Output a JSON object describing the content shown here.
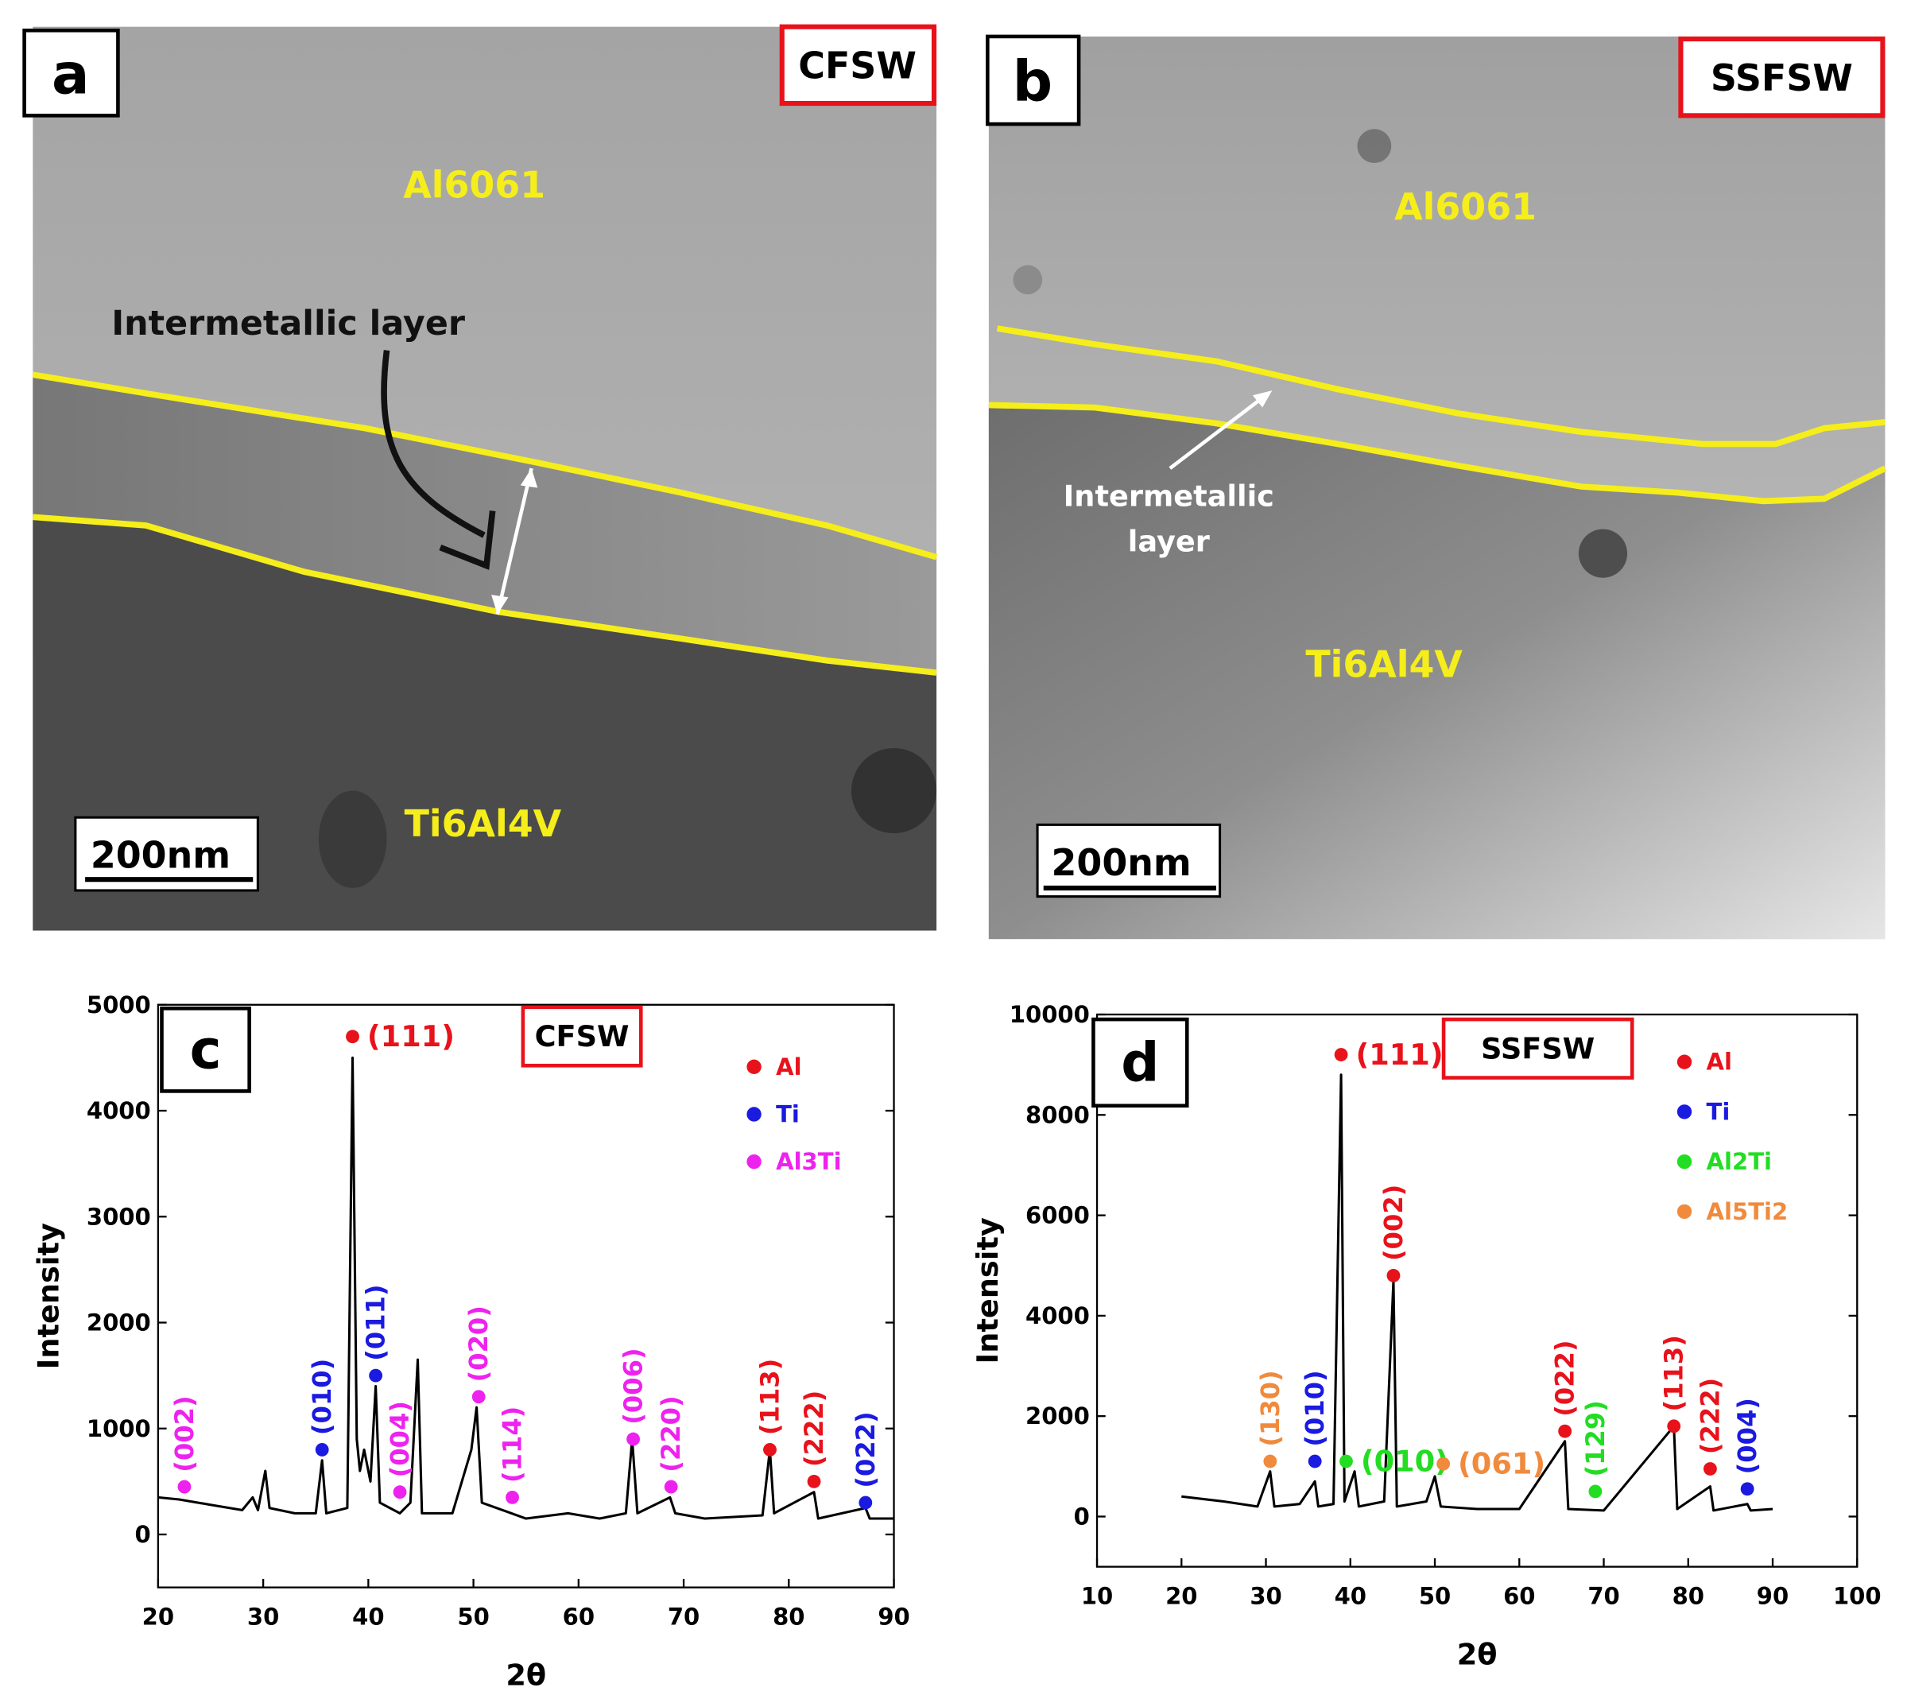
{
  "panels": [
    {
      "letter": "a",
      "tag": "CFSW",
      "top_label": "Al6061",
      "layer_label": [
        "Intermetallic layer"
      ],
      "bottom_label": "Ti6Al4V",
      "scale_bar": "200nm"
    },
    {
      "letter": "b",
      "tag": "SSFSW",
      "top_label": "Al6061",
      "layer_label": [
        "Intermetallic",
        "layer"
      ],
      "bottom_label": "Ti6Al4V",
      "scale_bar": "200nm"
    }
  ],
  "chart_data": [
    {
      "type": "line",
      "letter": "c",
      "tag": "CFSW",
      "xlabel": "2θ",
      "ylabel": "Intensity",
      "xlim": [
        20,
        90
      ],
      "xticks": [
        20,
        30,
        40,
        50,
        60,
        70,
        80,
        90
      ],
      "ylim": [
        -500,
        5000
      ],
      "yticks": [
        0,
        1000,
        2000,
        3000,
        4000,
        5000
      ],
      "color": "#000000",
      "x": [
        20,
        22,
        25,
        28,
        29,
        29.5,
        30.2,
        30.6,
        33,
        35,
        35.6,
        36,
        38,
        38.5,
        38.9,
        39.2,
        39.6,
        40.2,
        40.7,
        41.1,
        43,
        44,
        44.7,
        45.1,
        48,
        49.8,
        50.3,
        50.8,
        55,
        59,
        62,
        64.5,
        65.1,
        65.6,
        68.7,
        69.2,
        72,
        77.5,
        78.2,
        78.6,
        82.4,
        82.8,
        87.3,
        87.7,
        90
      ],
      "values": [
        350,
        330,
        280,
        230,
        350,
        230,
        600,
        250,
        200,
        200,
        700,
        200,
        250,
        4500,
        900,
        600,
        800,
        500,
        1400,
        300,
        200,
        300,
        1650,
        200,
        200,
        800,
        1200,
        300,
        150,
        200,
        150,
        200,
        900,
        200,
        350,
        200,
        150,
        180,
        800,
        200,
        400,
        150,
        250,
        150,
        150
      ],
      "legend": [
        {
          "name": "Al",
          "color": "#e8121b"
        },
        {
          "name": "Ti",
          "color": "#1a1ae0"
        },
        {
          "name": "Al3Ti",
          "color": "#ee22ee"
        }
      ],
      "annotations": [
        {
          "text": "(111)",
          "x": 38.5,
          "y": 4700,
          "color": "#e8121b",
          "rotated": false
        },
        {
          "text": "(002)",
          "x": 22.5,
          "y": 450,
          "color": "#ee22ee",
          "rotated": true
        },
        {
          "text": "(010)",
          "x": 35.6,
          "y": 800,
          "color": "#1a1ae0",
          "rotated": true
        },
        {
          "text": "(011)",
          "x": 40.7,
          "y": 1500,
          "color": "#1a1ae0",
          "rotated": true
        },
        {
          "text": "(004)",
          "x": 43,
          "y": 400,
          "color": "#ee22ee",
          "rotated": true
        },
        {
          "text": "(020)",
          "x": 50.5,
          "y": 1300,
          "color": "#ee22ee",
          "rotated": true
        },
        {
          "text": "(114)",
          "x": 53.7,
          "y": 350,
          "color": "#ee22ee",
          "rotated": true
        },
        {
          "text": "(006)",
          "x": 65.2,
          "y": 900,
          "color": "#ee22ee",
          "rotated": true
        },
        {
          "text": "(220)",
          "x": 68.8,
          "y": 450,
          "color": "#ee22ee",
          "rotated": true
        },
        {
          "text": "(113)",
          "x": 78.2,
          "y": 800,
          "color": "#e8121b",
          "rotated": true
        },
        {
          "text": "(222)",
          "x": 82.4,
          "y": 500,
          "color": "#e8121b",
          "rotated": true
        },
        {
          "text": "(022)",
          "x": 87.3,
          "y": 300,
          "color": "#1a1ae0",
          "rotated": true
        }
      ]
    },
    {
      "type": "line",
      "letter": "d",
      "tag": "SSFSW",
      "xlabel": "2θ",
      "ylabel": "Intensity",
      "xlim": [
        10,
        100
      ],
      "xticks": [
        10,
        20,
        30,
        40,
        50,
        60,
        70,
        80,
        90,
        100
      ],
      "ylim": [
        -1000,
        10000
      ],
      "yticks": [
        0,
        2000,
        4000,
        6000,
        8000,
        10000
      ],
      "color": "#000000",
      "x": [
        20,
        25,
        29,
        30.5,
        31,
        34,
        35,
        35.8,
        36.2,
        38,
        38.9,
        39.3,
        40.5,
        41,
        44,
        45.1,
        45.5,
        49,
        50,
        50.7,
        55,
        60,
        65.4,
        65.8,
        70,
        78.3,
        78.7,
        82.6,
        83,
        87,
        87.4,
        90
      ],
      "values": [
        400,
        300,
        200,
        900,
        200,
        250,
        500,
        700,
        200,
        250,
        8800,
        300,
        900,
        200,
        300,
        4700,
        200,
        300,
        800,
        200,
        150,
        150,
        1500,
        150,
        120,
        1800,
        150,
        600,
        120,
        250,
        120,
        150
      ],
      "legend": [
        {
          "name": "Al",
          "color": "#e8121b"
        },
        {
          "name": "Ti",
          "color": "#1a1ae0"
        },
        {
          "name": "Al2Ti",
          "color": "#22dd22"
        },
        {
          "name": "Al5Ti2",
          "color": "#f08a3c"
        }
      ],
      "annotations": [
        {
          "text": "(111)",
          "x": 38.9,
          "y": 9200,
          "color": "#e8121b",
          "rotated": false
        },
        {
          "text": "(010)",
          "x": 39.5,
          "y": 1100,
          "color": "#22dd22",
          "rotated": false
        },
        {
          "text": "(061)",
          "x": 51,
          "y": 1050,
          "color": "#f08a3c",
          "rotated": false
        },
        {
          "text": "(130)",
          "x": 30.5,
          "y": 1100,
          "color": "#f08a3c",
          "rotated": true
        },
        {
          "text": "(010)",
          "x": 35.8,
          "y": 1100,
          "color": "#1a1ae0",
          "rotated": true
        },
        {
          "text": "(002)",
          "x": 45.1,
          "y": 4800,
          "color": "#e8121b",
          "rotated": true
        },
        {
          "text": "(022)",
          "x": 65.4,
          "y": 1700,
          "color": "#e8121b",
          "rotated": true
        },
        {
          "text": "(129)",
          "x": 69,
          "y": 500,
          "color": "#22dd22",
          "rotated": true
        },
        {
          "text": "(113)",
          "x": 78.3,
          "y": 1800,
          "color": "#e8121b",
          "rotated": true
        },
        {
          "text": "(222)",
          "x": 82.6,
          "y": 950,
          "color": "#e8121b",
          "rotated": true
        },
        {
          "text": "(004)",
          "x": 87,
          "y": 550,
          "color": "#1a1ae0",
          "rotated": true
        }
      ]
    }
  ]
}
